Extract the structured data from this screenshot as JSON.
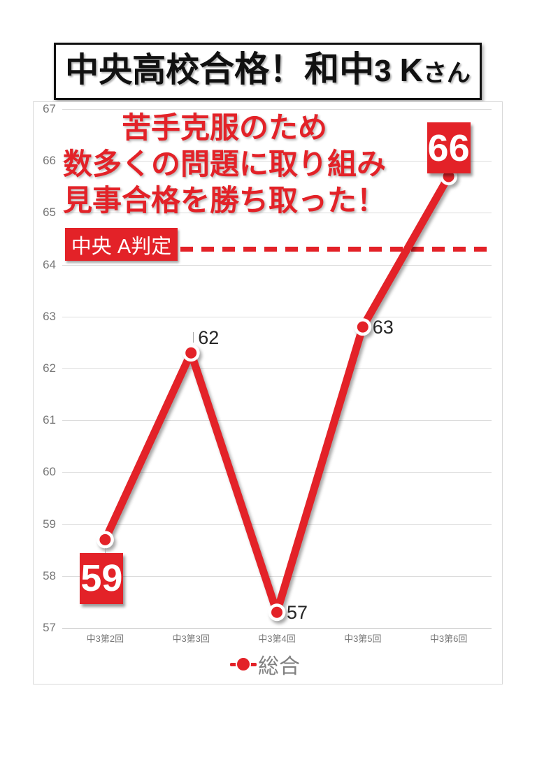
{
  "title": {
    "school": "中央高校",
    "pass": "合格！",
    "student_school": "和中",
    "grade": "3",
    "initial": "K",
    "honorific": "さん"
  },
  "chart_data": {
    "type": "line",
    "categories": [
      "中3第2回",
      "中3第3回",
      "中3第4回",
      "中3第5回",
      "中3第6回"
    ],
    "series": [
      {
        "name": "総合",
        "values": [
          58.7,
          62.3,
          57.3,
          62.8,
          65.7
        ]
      }
    ],
    "point_labels": [
      "59",
      "62",
      "57",
      "63",
      "66"
    ],
    "label_pos": [
      "box-below",
      "above",
      "right",
      "right",
      "box-above"
    ],
    "ylim": [
      57,
      67
    ],
    "yticks": [
      57,
      58,
      59,
      60,
      61,
      62,
      63,
      64,
      65,
      66,
      67
    ],
    "grid": true,
    "legend_position": "bottom",
    "line_color": "#e32228",
    "threshold": {
      "value": 64.3,
      "label": "中央 A判定"
    },
    "annotation_lines": [
      "苦手克服のため",
      "数多くの問題に取り組み",
      "見事合格を勝ち取った！"
    ]
  },
  "legend": {
    "label": "総合"
  },
  "colors": {
    "red": "#e32228",
    "axis_text": "#777777",
    "gridline": "#dcdcdc",
    "data_label_text": "#262626",
    "legend_text": "#808080"
  }
}
